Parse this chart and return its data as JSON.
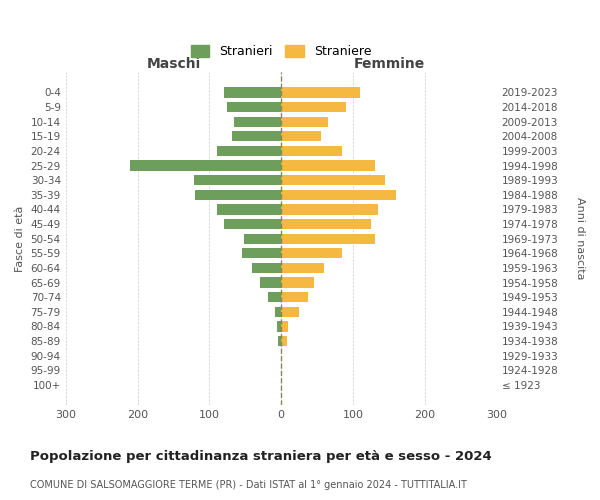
{
  "age_groups": [
    "100+",
    "95-99",
    "90-94",
    "85-89",
    "80-84",
    "75-79",
    "70-74",
    "65-69",
    "60-64",
    "55-59",
    "50-54",
    "45-49",
    "40-44",
    "35-39",
    "30-34",
    "25-29",
    "20-24",
    "15-19",
    "10-14",
    "5-9",
    "0-4"
  ],
  "birth_years": [
    "≤ 1923",
    "1924-1928",
    "1929-1933",
    "1934-1938",
    "1939-1943",
    "1944-1948",
    "1949-1953",
    "1954-1958",
    "1959-1963",
    "1964-1968",
    "1969-1973",
    "1974-1978",
    "1979-1983",
    "1984-1988",
    "1989-1993",
    "1994-1998",
    "1999-2003",
    "2004-2008",
    "2009-2013",
    "2014-2018",
    "2019-2023"
  ],
  "maschi": [
    0,
    0,
    0,
    5,
    6,
    8,
    18,
    30,
    40,
    55,
    52,
    80,
    90,
    120,
    122,
    210,
    90,
    68,
    65,
    75,
    80
  ],
  "femmine": [
    0,
    0,
    0,
    8,
    10,
    25,
    38,
    45,
    60,
    85,
    130,
    125,
    135,
    160,
    145,
    130,
    85,
    55,
    65,
    90,
    110
  ],
  "color_maschi": "#6d9e5b",
  "color_femmine": "#f5b942",
  "title": "Popolazione per cittadinanza straniera per età e sesso - 2024",
  "subtitle": "COMUNE DI SALSOMAGGIORE TERME (PR) - Dati ISTAT al 1° gennaio 2024 - TUTTITALIA.IT",
  "xlabel_left": "Maschi",
  "xlabel_right": "Femmine",
  "ylabel_left": "Fasce di età",
  "ylabel_right": "Anni di nascita",
  "legend_maschi": "Stranieri",
  "legend_femmine": "Straniere",
  "xlim": 300,
  "background_color": "#ffffff",
  "grid_color": "#cccccc"
}
